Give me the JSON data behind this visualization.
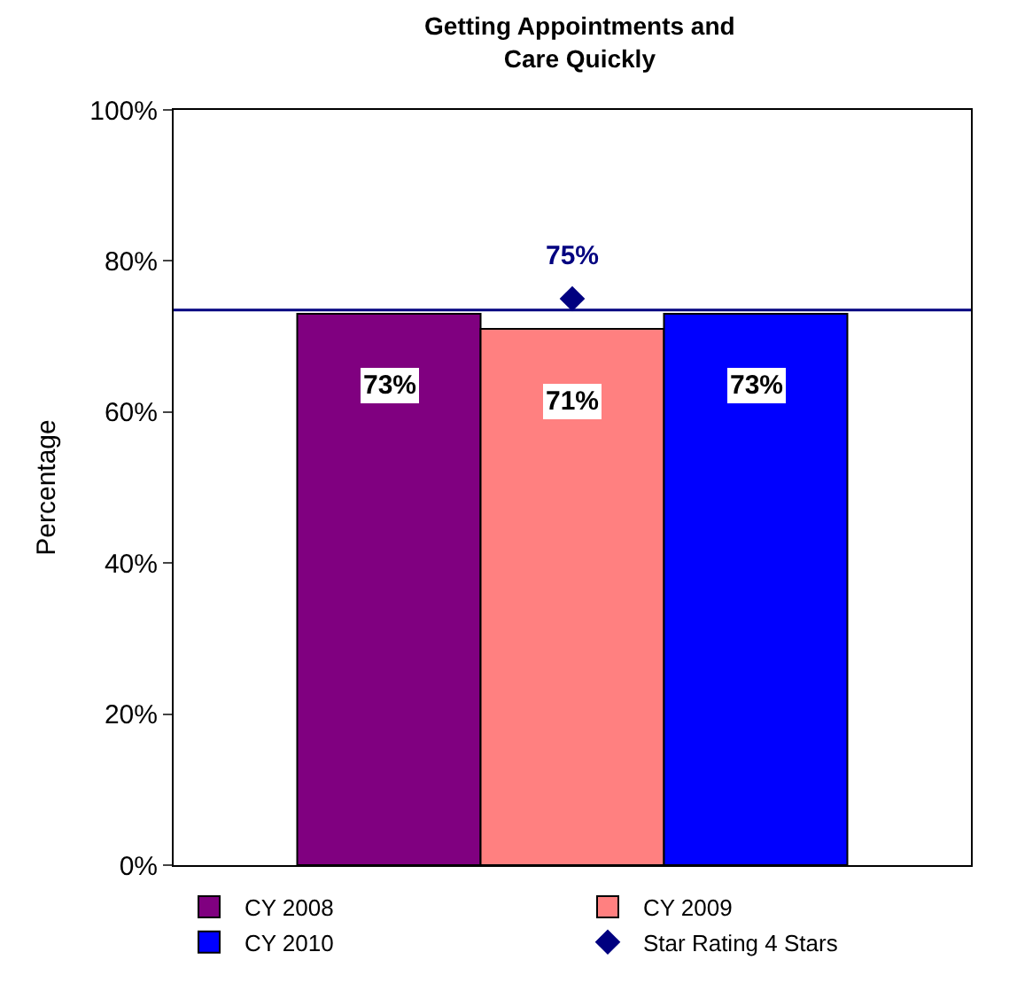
{
  "chart_data": {
    "type": "bar",
    "title": "Getting Appointments and\nCare Quickly",
    "ylabel": "Percentage",
    "categories": [
      null
    ],
    "series": [
      {
        "name": "CY 2008",
        "color": "#800080",
        "values": [
          73
        ],
        "value_labels": [
          "73%"
        ]
      },
      {
        "name": "CY 2009",
        "color": "#ff8080",
        "values": [
          71
        ],
        "value_labels": [
          "71%"
        ]
      },
      {
        "name": "CY 2010",
        "color": "#0000ff",
        "values": [
          73
        ],
        "value_labels": [
          "73%"
        ]
      },
      {
        "name": "Star Rating 4 Stars",
        "type": "scatter",
        "marker": "diamond",
        "color": "#000080",
        "values": [
          75
        ],
        "value_labels": [
          "75%"
        ]
      }
    ],
    "ylim": [
      0,
      100
    ],
    "yticks": [
      {
        "value": 0,
        "label": "0%"
      },
      {
        "value": 20,
        "label": "20%"
      },
      {
        "value": 40,
        "label": "40%"
      },
      {
        "value": 60,
        "label": "60%"
      },
      {
        "value": 80,
        "label": "80%"
      },
      {
        "value": 100,
        "label": "100%"
      }
    ],
    "ref_lines": [
      {
        "axis": "y",
        "value": 73.5,
        "color": "#000080"
      }
    ],
    "legend": "bottom"
  }
}
